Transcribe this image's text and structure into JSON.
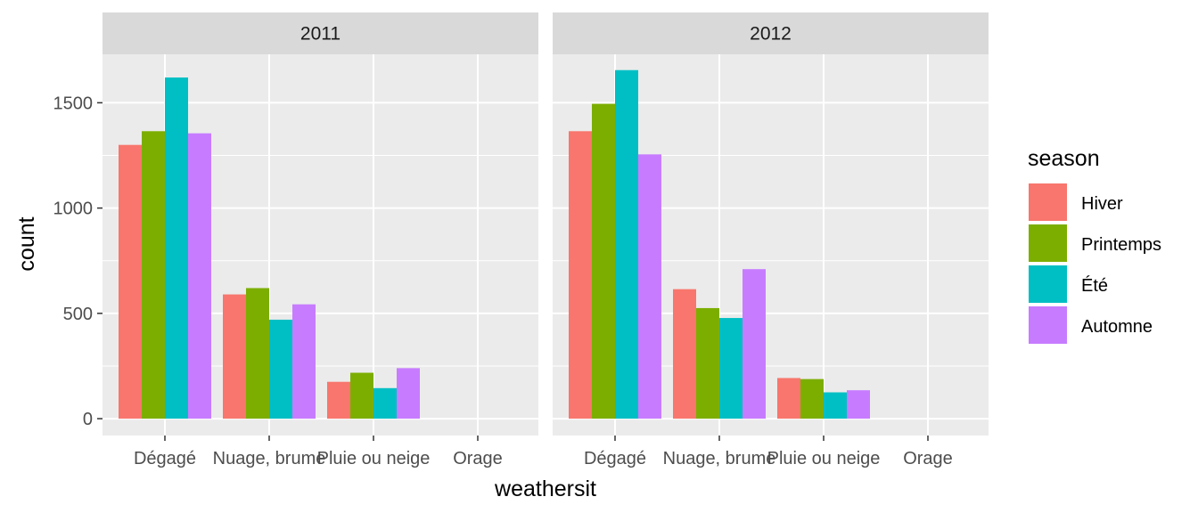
{
  "chart_data": {
    "type": "bar",
    "facet_var": "yr",
    "facets": [
      {
        "label": "2011",
        "series_values": {
          "Hiver": [
            1300,
            590,
            175,
            0
          ],
          "Printemps": [
            1365,
            620,
            218,
            0
          ],
          "Été": [
            1620,
            470,
            145,
            0
          ],
          "Automne": [
            1355,
            543,
            240,
            0
          ]
        }
      },
      {
        "label": "2012",
        "series_values": {
          "Hiver": [
            1365,
            615,
            193,
            0
          ],
          "Printemps": [
            1495,
            525,
            188,
            0
          ],
          "Été": [
            1655,
            478,
            125,
            0
          ],
          "Automne": [
            1255,
            710,
            135,
            0
          ]
        }
      }
    ],
    "categories": [
      "Dégagé",
      "Nuage, brume",
      "Pluie ou neige",
      "Orage"
    ],
    "series": [
      {
        "name": "Hiver",
        "color": "#F8766D"
      },
      {
        "name": "Printemps",
        "color": "#7CAE00"
      },
      {
        "name": "Été",
        "color": "#00BFC4"
      },
      {
        "name": "Automne",
        "color": "#C77CFF"
      }
    ],
    "xlabel": "weathersit",
    "ylabel": "count",
    "ylim": [
      -80,
      1730
    ],
    "yticks": [
      0,
      500,
      1000,
      1500
    ],
    "legend_title": "season",
    "legend_position": "right",
    "grid": true,
    "panel_background": "#EBEBEB",
    "strip_background": "#D9D9D9"
  }
}
